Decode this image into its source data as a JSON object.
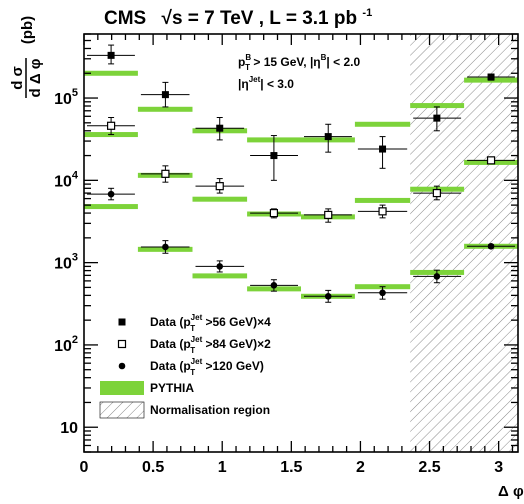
{
  "chart_data": {
    "type": "scatter",
    "title": {
      "experiment": "CMS",
      "sqrt_s_label": "√s = 7 TeV",
      "lumi_prefix": ", L = 3.1 pb",
      "lumi_exp": "-1"
    },
    "ylabel": {
      "numer": "d σ",
      "denom": "d Δ φ",
      "unit": "(pb)"
    },
    "xlabel": "Δ φ",
    "xlim": [
      0,
      3.14
    ],
    "ylim": [
      5,
      600000
    ],
    "y_scale": "log",
    "x_ticks": [
      {
        "v": 0,
        "label": "0"
      },
      {
        "v": 0.5,
        "label": "0.5"
      },
      {
        "v": 1,
        "label": "1"
      },
      {
        "v": 1.5,
        "label": "1.5"
      },
      {
        "v": 2,
        "label": "2"
      },
      {
        "v": 2.5,
        "label": "2.5"
      },
      {
        "v": 3,
        "label": "3"
      }
    ],
    "y_ticks": [
      {
        "v": 10,
        "base": "10",
        "exp": ""
      },
      {
        "v": 100,
        "base": "10",
        "exp": "2"
      },
      {
        "v": 1000,
        "base": "10",
        "exp": "3"
      },
      {
        "v": 10000,
        "base": "10",
        "exp": "4"
      },
      {
        "v": 100000,
        "base": "10",
        "exp": "5"
      }
    ],
    "cuts": {
      "line1": "p",
      "line1_sub": "T",
      "line1_sup": "B",
      "line1_rest": " > 15 GeV, |η",
      "line1_sup2": "B",
      "line1_end": "| < 2.0",
      "line2_pre": "|η",
      "line2_sup": "Jet",
      "line2_end": "| < 3.0"
    },
    "normalisation_region": [
      2.36,
      3.14
    ],
    "bins": [
      [
        0.0,
        0.39
      ],
      [
        0.39,
        0.785
      ],
      [
        0.785,
        1.18
      ],
      [
        1.18,
        1.57
      ],
      [
        1.57,
        1.96
      ],
      [
        1.96,
        2.36
      ],
      [
        2.36,
        2.75
      ],
      [
        2.75,
        3.14
      ]
    ],
    "series": [
      {
        "name": "Data (p_T^Jet >56 GeV)×4",
        "marker": "filled-square",
        "x": [
          0.196,
          0.589,
          0.982,
          1.374,
          1.767,
          2.16,
          2.553,
          2.945
        ],
        "values": [
          330000,
          110000,
          43000,
          20000,
          34000,
          24000,
          57000,
          180000
        ],
        "err_up": [
          440000,
          155000,
          58000,
          35000,
          48000,
          34000,
          78000,
          195000
        ],
        "err_down": [
          260000,
          78000,
          31000,
          10000,
          22000,
          14000,
          40000,
          165000
        ],
        "pythia": [
          200000,
          73000,
          40000,
          31000,
          31000,
          48000,
          81000,
          165000
        ]
      },
      {
        "name": "Data (p_T^Jet >84 GeV)×2",
        "marker": "open-square",
        "x": [
          0.196,
          0.589,
          0.982,
          1.374,
          1.767,
          2.16,
          2.553,
          2.945
        ],
        "values": [
          46000,
          12000,
          8500,
          4000,
          3800,
          4200,
          7000,
          17500
        ],
        "err_up": [
          58000,
          15000,
          10500,
          4500,
          4500,
          5000,
          8500,
          18500
        ],
        "err_down": [
          36000,
          9500,
          7000,
          3500,
          3100,
          3500,
          5800,
          16500
        ],
        "pythia": [
          36000,
          11500,
          5900,
          3900,
          3600,
          5700,
          7800,
          16500
        ]
      },
      {
        "name": "Data (p_T^Jet >120 GeV)",
        "marker": "filled-circle",
        "x": [
          0.196,
          0.589,
          0.982,
          1.374,
          1.767,
          2.16,
          2.553,
          2.945
        ],
        "values": [
          6800,
          1550,
          900,
          530,
          390,
          430,
          680,
          1580
        ],
        "err_up": [
          8000,
          1850,
          1050,
          620,
          460,
          510,
          810,
          1650
        ],
        "err_down": [
          5800,
          1300,
          770,
          450,
          330,
          360,
          570,
          1510
        ],
        "pythia": [
          4800,
          1450,
          690,
          480,
          390,
          510,
          760,
          1580
        ]
      }
    ],
    "legend": {
      "placement": "bottom-left",
      "entries": [
        {
          "marker": "filled-square",
          "pre": "Data (p",
          "sub": "T",
          "sup": "Jet",
          "post": " >56 GeV)×4"
        },
        {
          "marker": "open-square",
          "pre": "Data (p",
          "sub": "T",
          "sup": "Jet",
          "post": " >84 GeV)×2"
        },
        {
          "marker": "filled-circle",
          "pre": "Data (p",
          "sub": "T",
          "sup": "Jet",
          "post": " >120 GeV)"
        },
        {
          "marker": "green-band",
          "pre": "PYTHIA"
        },
        {
          "marker": "hatch",
          "pre": "Normalisation region"
        }
      ]
    },
    "colors": {
      "pythia": "#7dd33a",
      "data": "#000000",
      "hatch": "#888888"
    },
    "grid": false
  }
}
